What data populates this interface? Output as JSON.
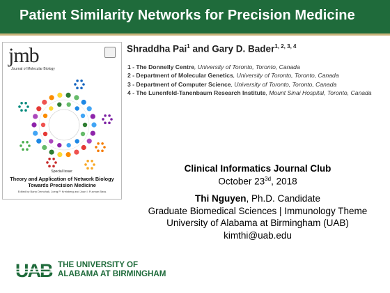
{
  "header": {
    "title": "Patient Similarity Networks for Precision Medicine",
    "bar_color": "#1f6b3b",
    "accent_line_color": "#c9b37a"
  },
  "cover": {
    "logo_text": "jmb",
    "journal_name": "Journal of Molecular Biology",
    "special_issue": "Special Issue:",
    "special_title_1": "Theory and Application of Network Biology",
    "special_title_2": "Towards Precision Medicine",
    "editors": "Edited by Barry Demchak, Joerg P. Kreisberg and Joan I. Fuxman Bass"
  },
  "authors": {
    "author1": "Shraddha Pai",
    "author1_sup": "1",
    "and": "and",
    "author2": "Gary D. Bader",
    "author2_sup": "1, 2, 3, 4"
  },
  "affiliations": [
    {
      "label": "1 - The Donnelly Centre",
      "location": ", University of Toronto, Toronto, Canada"
    },
    {
      "label": "2 - Department of Molecular Genetics",
      "location": ", University of Toronto, Toronto, Canada"
    },
    {
      "label": "3 - Department of Computer Science",
      "location": ", University of Toronto, Toronto, Canada"
    },
    {
      "label": "4 - The Lunenfeld-Tanenbaum Research Institute",
      "location": ", Mount Sinai Hospital, Toronto, Canada"
    }
  ],
  "presentation": {
    "event": "Clinical Informatics Journal Club",
    "date_prefix": "October 23",
    "date_sup": "3d",
    "date_suffix": ", 2018",
    "presenter": "Thi Nguyen",
    "presenter_title": ", Ph.D. Candidate",
    "program": "Graduate Biomedical Sciences | Immunology Theme",
    "university": "University of Alabama at Birmingham (UAB)",
    "email": "kimthi@uab.edu"
  },
  "footer": {
    "logo_letters": "UAB",
    "line1": "THE UNIVERSITY OF",
    "line2": "ALABAMA AT BIRMINGHAM",
    "brand_color": "#1f6b3b"
  }
}
